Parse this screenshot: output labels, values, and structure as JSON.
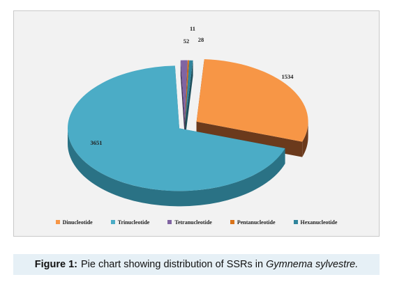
{
  "chart_data": {
    "type": "pie",
    "style": "3d-exploded",
    "title": "",
    "categories": [
      "Dinucleotide",
      "Trinucleotide",
      "Tetranucleotide",
      "Pentanucleotide",
      "Hexanucleotide"
    ],
    "values": [
      1534,
      3651,
      52,
      11,
      28
    ],
    "value_labels": [
      "1534",
      "3651",
      "52",
      "11",
      "28"
    ],
    "colors": [
      "#f79646",
      "#4bacc6",
      "#8064a2",
      "#d9731a",
      "#31859c"
    ],
    "side_colors": [
      "#6b3a1c",
      "#2a7285",
      "#3f3156",
      "#6b3a1c",
      "#1e4f5c"
    ],
    "legend_position": "bottom"
  },
  "caption": {
    "label": "Figure 1:",
    "text": "Pie chart showing distribution of SSRs in",
    "species": "Gymnema sylvestre."
  }
}
